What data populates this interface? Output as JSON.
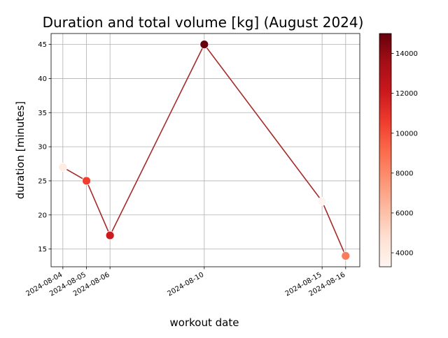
{
  "chart_data": {
    "type": "scatter",
    "title": "Duration and total volume [kg] (August 2024)",
    "xlabel": "workout date",
    "ylabel": "duration [minutes]",
    "x": [
      "2024-08-04",
      "2024-08-05",
      "2024-08-06",
      "2024-08-10",
      "2024-08-15",
      "2024-08-16"
    ],
    "y": [
      27,
      25,
      17,
      45,
      22,
      14
    ],
    "color_values": [
      4000,
      10500,
      12000,
      15000,
      3300,
      8500
    ],
    "xlim": [
      "2024-08-03.5",
      "2024-08-16.6"
    ],
    "xticks": [
      "2024-08-04",
      "2024-08-05",
      "2024-08-06",
      "2024-08-10",
      "2024-08-15",
      "2024-08-16"
    ],
    "ylim": [
      12.4,
      46.6
    ],
    "yticks": [
      15,
      20,
      25,
      30,
      35,
      40,
      45
    ],
    "colorbar": {
      "range": [
        3300,
        15000
      ],
      "ticks": [
        4000,
        6000,
        8000,
        10000,
        12000,
        14000
      ],
      "colormap": "Reds"
    },
    "line_color": "#a52a2a",
    "grid": true
  }
}
